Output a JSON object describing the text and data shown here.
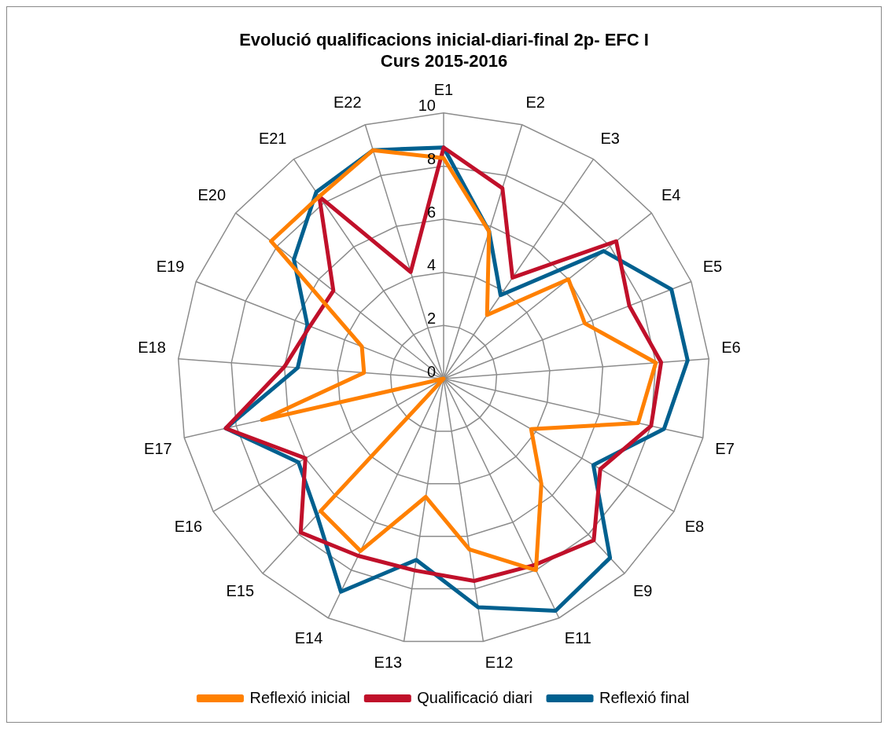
{
  "chart_data": {
    "type": "radar",
    "title": "Evolució qualificacions inicial-diari-final 2p- EFC I",
    "subtitle": "Curs 2015-2016",
    "categories": [
      "E1",
      "E2",
      "E3",
      "E4",
      "E5",
      "E6",
      "E7",
      "E8",
      "E9",
      "E11",
      "E12",
      "E13",
      "E14",
      "E15",
      "E16",
      "E17",
      "E18",
      "E19",
      "E20",
      "E21",
      "E22"
    ],
    "series": [
      {
        "name": "Reflexió inicial",
        "color": "#ff8000",
        "values": [
          8.3,
          5.8,
          2.9,
          6.0,
          5.7,
          8.0,
          7.5,
          3.8,
          5.4,
          8.0,
          6.5,
          4.5,
          7.2,
          6.8,
          0,
          7.0,
          3.0,
          3.3,
          8.3,
          8.3,
          9.0
        ]
      },
      {
        "name": "Qualificació diari",
        "color": "#c0102a",
        "values": [
          8.7,
          7.5,
          4.6,
          8.3,
          7.5,
          8.2,
          8.0,
          6.8,
          8.3,
          7.8,
          7.7,
          7.3,
          7.4,
          7.9,
          6.0,
          8.4,
          6.0,
          5.4,
          5.3,
          8.3,
          4.2
        ]
      },
      {
        "name": "Reflexió final",
        "color": "#00608f",
        "values": [
          8.7,
          5.8,
          3.8,
          7.7,
          9.2,
          9.2,
          8.5,
          6.5,
          9.2,
          9.7,
          8.7,
          6.9,
          8.9,
          7.0,
          6.3,
          8.4,
          5.5,
          5.5,
          7.2,
          8.5,
          9.0
        ]
      }
    ],
    "ylim": [
      0,
      10
    ],
    "yticks": [
      0,
      2,
      4,
      6,
      8,
      10
    ],
    "grid": true,
    "legend": "bottom",
    "marker": "none",
    "line_style": "solid"
  }
}
